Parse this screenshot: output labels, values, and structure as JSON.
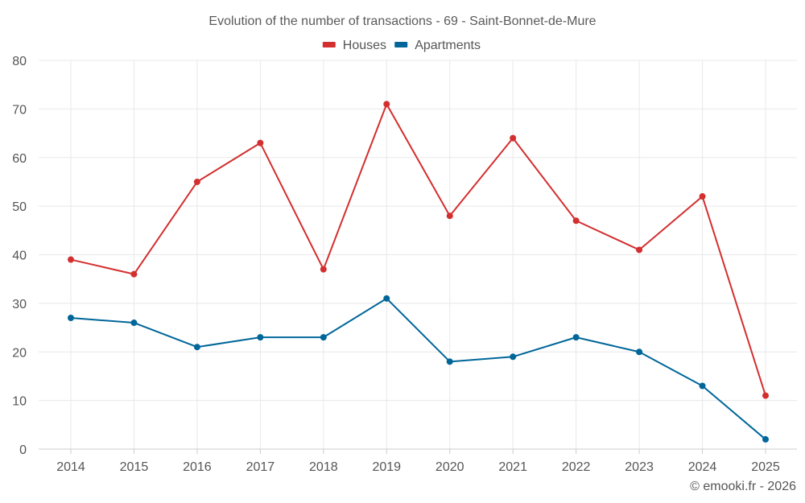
{
  "chart_data": {
    "type": "line",
    "title": "Evolution of the number of transactions - 69 - Saint-Bonnet-de-Mure",
    "xlabel": "",
    "ylabel": "",
    "categories": [
      "2014",
      "2015",
      "2016",
      "2017",
      "2018",
      "2019",
      "2020",
      "2021",
      "2022",
      "2023",
      "2024",
      "2025"
    ],
    "ylim": [
      0,
      80
    ],
    "yticks": [
      0,
      10,
      20,
      30,
      40,
      50,
      60,
      70,
      80
    ],
    "grid": true,
    "legend_position": "top-center",
    "series": [
      {
        "name": "Houses",
        "color": "#d32f2f",
        "values": [
          39,
          36,
          55,
          63,
          37,
          71,
          48,
          64,
          47,
          41,
          52,
          11
        ]
      },
      {
        "name": "Apartments",
        "color": "#006699",
        "values": [
          27,
          26,
          21,
          23,
          23,
          31,
          18,
          19,
          23,
          20,
          13,
          2
        ]
      }
    ]
  },
  "credit": "© emooki.fr - 2026"
}
